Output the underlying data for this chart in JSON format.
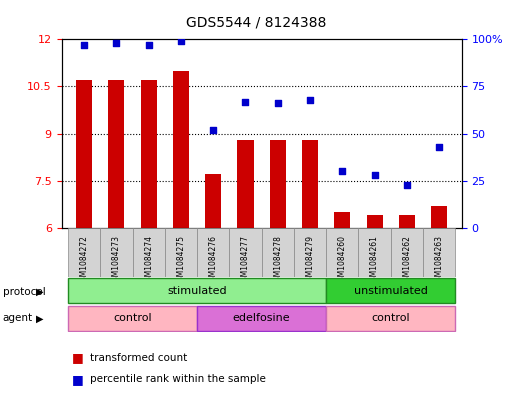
{
  "title": "GDS5544 / 8124388",
  "samples": [
    "GSM1084272",
    "GSM1084273",
    "GSM1084274",
    "GSM1084275",
    "GSM1084276",
    "GSM1084277",
    "GSM1084278",
    "GSM1084279",
    "GSM1084260",
    "GSM1084261",
    "GSM1084262",
    "GSM1084263"
  ],
  "bar_values": [
    10.7,
    10.7,
    10.7,
    11.0,
    7.7,
    8.8,
    8.8,
    8.8,
    6.5,
    6.4,
    6.4,
    6.7
  ],
  "scatter_values": [
    97,
    98,
    97,
    99,
    52,
    67,
    66,
    68,
    30,
    28,
    23,
    43
  ],
  "bar_color": "#CC0000",
  "scatter_color": "#0000CC",
  "ylim_left": [
    6,
    12
  ],
  "ylim_right": [
    0,
    100
  ],
  "yticks_left": [
    6,
    7.5,
    9,
    10.5,
    12
  ],
  "ytick_labels_left": [
    "6",
    "7.5",
    "9",
    "10.5",
    "12"
  ],
  "yticks_right": [
    0,
    25,
    50,
    75,
    100
  ],
  "ytick_labels_right": [
    "0",
    "25",
    "50",
    "75",
    "100%"
  ],
  "protocol_labels": [
    {
      "text": "stimulated",
      "start": 0,
      "end": 7,
      "color": "#90EE90",
      "dark_color": "#228B22"
    },
    {
      "text": "unstimulated",
      "start": 8,
      "end": 11,
      "color": "#32CD32",
      "dark_color": "#228B22"
    }
  ],
  "agent_labels": [
    {
      "text": "control",
      "start": 0,
      "end": 3,
      "color": "#FFB6C1",
      "dark_color": "#CC69B4"
    },
    {
      "text": "edelfosine",
      "start": 4,
      "end": 7,
      "color": "#DA70D6",
      "dark_color": "#9932CC"
    },
    {
      "text": "control",
      "start": 8,
      "end": 11,
      "color": "#FFB6C1",
      "dark_color": "#CC69B4"
    }
  ],
  "legend_bar_label": "transformed count",
  "legend_scatter_label": "percentile rank within the sample",
  "protocol_row_label": "protocol",
  "agent_row_label": "agent",
  "grid_color": "#000000",
  "background_color": "#FFFFFF",
  "plot_bg_color": "#FFFFFF",
  "bar_width": 0.5
}
